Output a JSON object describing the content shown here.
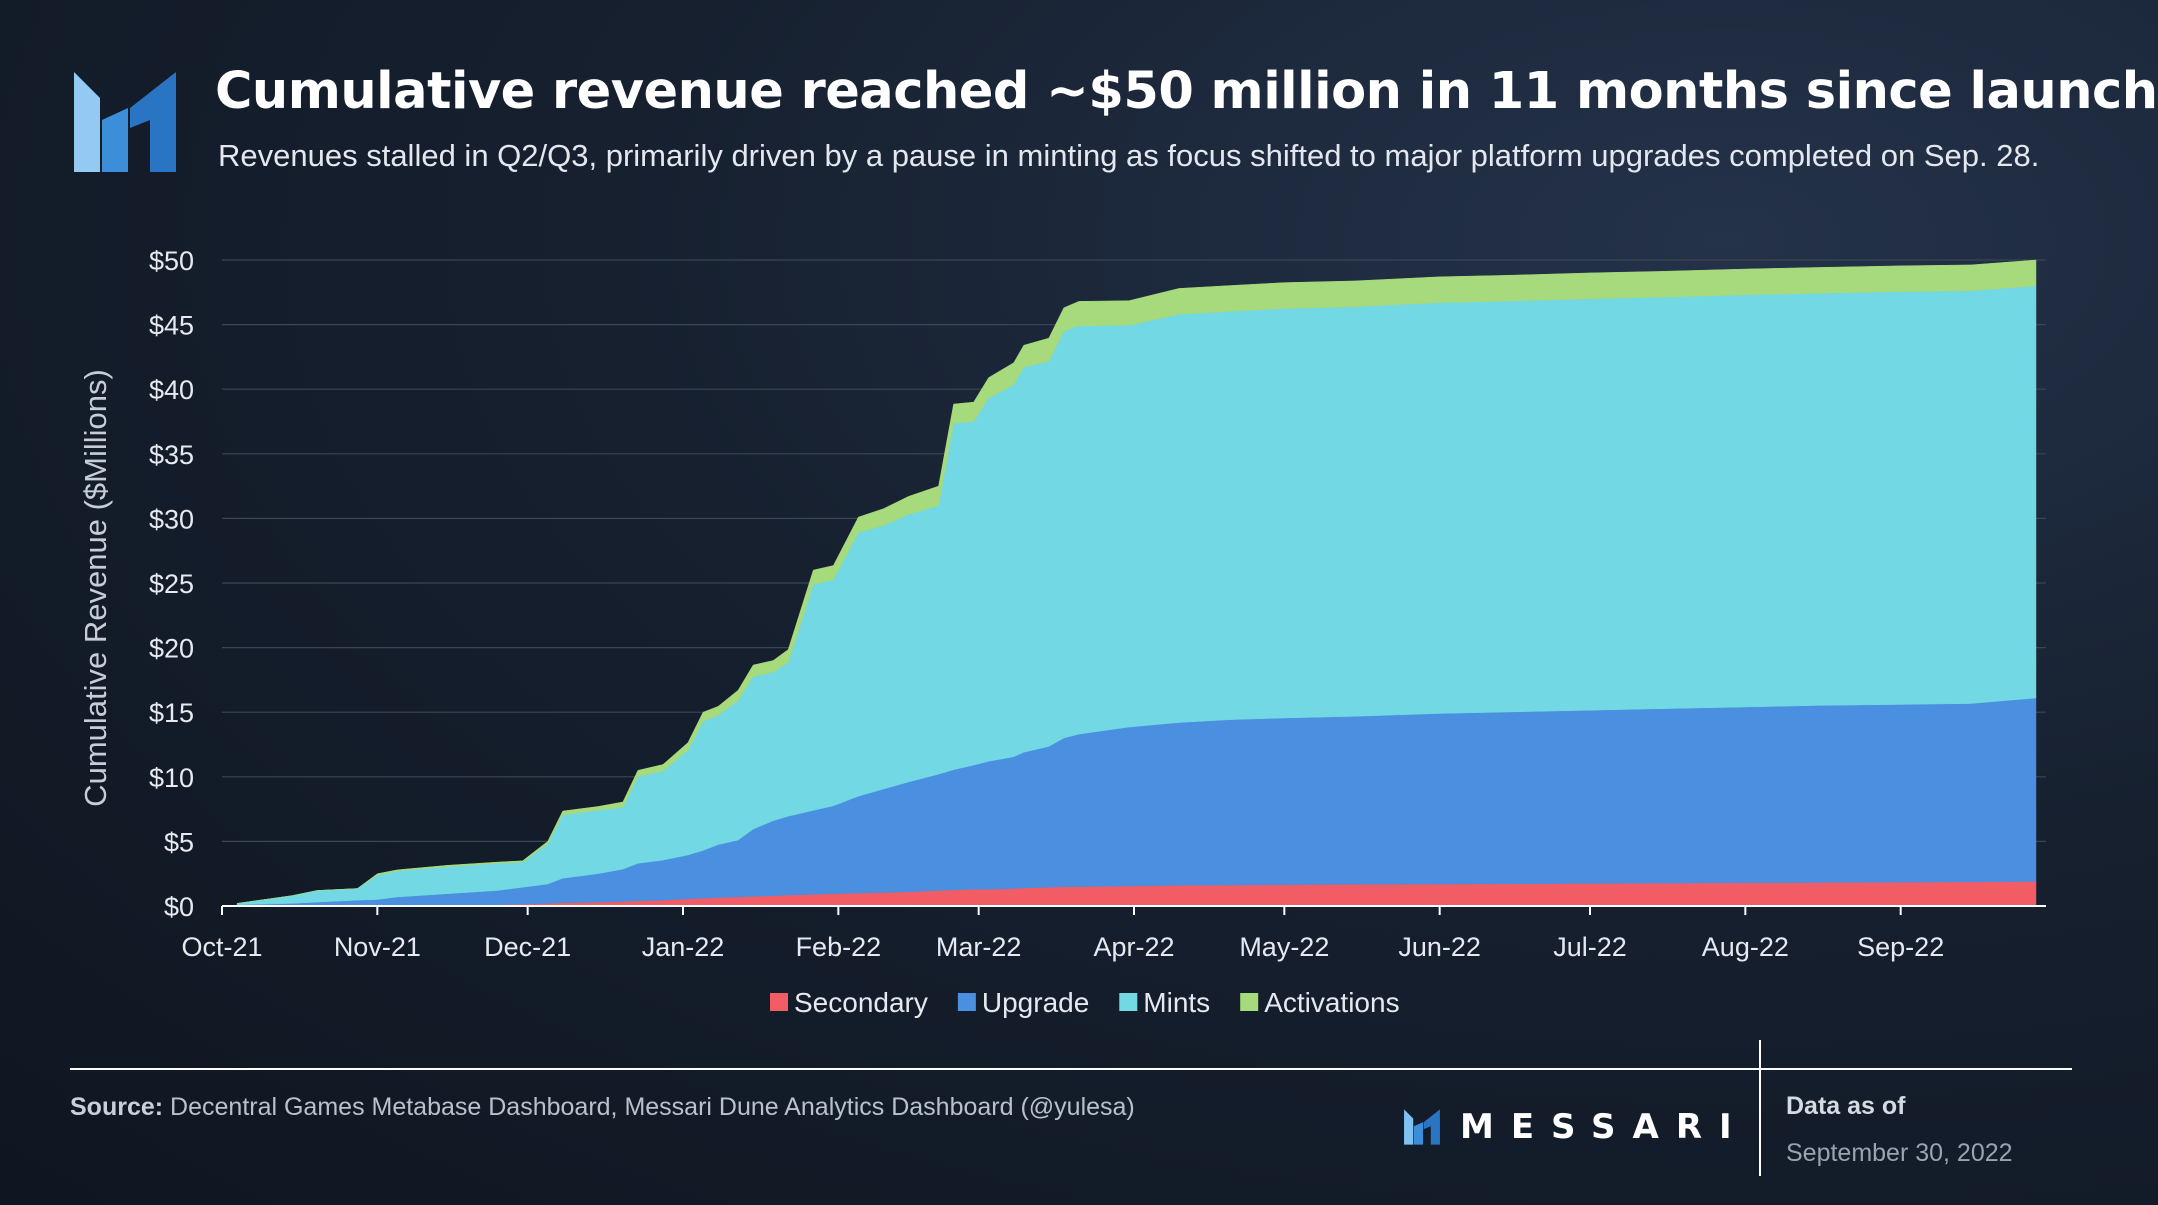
{
  "header": {
    "title": "Cumulative revenue reached ~$50 million in 11 months since launch",
    "subtitle": "Revenues stalled in Q2/Q3, primarily driven by a pause in minting as focus shifted to major platform upgrades completed on Sep. 28."
  },
  "colors": {
    "Secondary": "#f25c64",
    "Upgrade": "#4a8fe0",
    "Mints": "#72d8e4",
    "Activations": "#a6da7c",
    "grid": "#3a4656",
    "axis_text": "#e6eaf0"
  },
  "chart_data": {
    "type": "area",
    "stacked": true,
    "ylabel": "Cumulative Revenue ($Millions)",
    "xlabel": "",
    "ylim": [
      0,
      50
    ],
    "yticks": [
      0,
      5,
      10,
      15,
      20,
      25,
      30,
      35,
      40,
      45,
      50
    ],
    "ytick_labels": [
      "$0",
      "$5",
      "$10",
      "$15",
      "$20",
      "$25",
      "$30",
      "$35",
      "$40",
      "$45",
      "$50"
    ],
    "xlim": [
      "2021-10-01",
      "2022-09-30"
    ],
    "xtick_labels": [
      "Oct-21",
      "Nov-21",
      "Dec-21",
      "Jan-22",
      "Feb-22",
      "Mar-22",
      "Apr-22",
      "May-22",
      "Jun-22",
      "Jul-22",
      "Aug-22",
      "Sep-22"
    ],
    "xtick_dates": [
      "2021-10-01",
      "2021-11-01",
      "2021-12-01",
      "2022-01-01",
      "2022-02-01",
      "2022-03-01",
      "2022-04-01",
      "2022-05-01",
      "2022-06-01",
      "2022-07-01",
      "2022-08-01",
      "2022-09-01"
    ],
    "legend_position": "bottom-center",
    "grid": true,
    "x": [
      "2021-10-04",
      "2021-10-15",
      "2021-10-20",
      "2021-10-28",
      "2021-11-01",
      "2021-11-05",
      "2021-11-15",
      "2021-11-25",
      "2021-11-30",
      "2021-12-05",
      "2021-12-08",
      "2021-12-15",
      "2021-12-20",
      "2021-12-23",
      "2021-12-28",
      "2022-01-02",
      "2022-01-05",
      "2022-01-08",
      "2022-01-12",
      "2022-01-15",
      "2022-01-19",
      "2022-01-22",
      "2022-01-27",
      "2022-01-31",
      "2022-02-05",
      "2022-02-10",
      "2022-02-15",
      "2022-02-21",
      "2022-02-24",
      "2022-02-28",
      "2022-03-03",
      "2022-03-08",
      "2022-03-10",
      "2022-03-15",
      "2022-03-18",
      "2022-03-21",
      "2022-03-31",
      "2022-04-10",
      "2022-04-20",
      "2022-05-01",
      "2022-05-15",
      "2022-06-01",
      "2022-06-15",
      "2022-07-01",
      "2022-07-15",
      "2022-08-01",
      "2022-08-15",
      "2022-09-01",
      "2022-09-15",
      "2022-09-28"
    ],
    "series": [
      {
        "name": "Secondary",
        "values": [
          0,
          0,
          0,
          0,
          0,
          0,
          0.05,
          0.1,
          0.15,
          0.2,
          0.25,
          0.3,
          0.35,
          0.4,
          0.45,
          0.55,
          0.6,
          0.65,
          0.7,
          0.75,
          0.8,
          0.85,
          0.9,
          0.95,
          1.0,
          1.05,
          1.1,
          1.2,
          1.25,
          1.3,
          1.3,
          1.35,
          1.4,
          1.45,
          1.5,
          1.5,
          1.55,
          1.6,
          1.62,
          1.65,
          1.68,
          1.7,
          1.72,
          1.75,
          1.77,
          1.8,
          1.82,
          1.85,
          1.87,
          1.9
        ]
      },
      {
        "name": "Upgrade",
        "values": [
          0.1,
          0.2,
          0.3,
          0.45,
          0.5,
          0.7,
          0.9,
          1.1,
          1.3,
          1.5,
          1.9,
          2.2,
          2.5,
          2.9,
          3.1,
          3.4,
          3.7,
          4.1,
          4.4,
          5.2,
          5.8,
          6.1,
          6.5,
          6.8,
          7.5,
          8.0,
          8.5,
          9.0,
          9.3,
          9.6,
          9.9,
          10.2,
          10.5,
          10.9,
          11.5,
          11.8,
          12.3,
          12.6,
          12.8,
          12.9,
          13.0,
          13.2,
          13.3,
          13.4,
          13.5,
          13.6,
          13.7,
          13.75,
          13.8,
          14.2
        ]
      },
      {
        "name": "Mints",
        "values": [
          0.1,
          0.6,
          0.9,
          0.9,
          1.9,
          2.0,
          2.1,
          2.1,
          1.95,
          3.1,
          4.9,
          4.9,
          4.8,
          6.7,
          6.9,
          8.1,
          10.0,
          10.0,
          10.8,
          11.8,
          11.5,
          11.9,
          17.5,
          17.5,
          20.4,
          20.4,
          20.7,
          20.8,
          26.8,
          26.6,
          28.1,
          28.8,
          29.8,
          29.8,
          31.5,
          31.6,
          31.1,
          31.6,
          31.6,
          31.7,
          31.7,
          31.8,
          31.8,
          31.85,
          31.85,
          31.9,
          31.9,
          31.95,
          31.95,
          31.9
        ]
      },
      {
        "name": "Activations",
        "values": [
          0,
          0,
          0,
          0,
          0.1,
          0.1,
          0.1,
          0.1,
          0.1,
          0.2,
          0.3,
          0.3,
          0.4,
          0.5,
          0.5,
          0.6,
          0.7,
          0.7,
          0.8,
          0.9,
          0.9,
          1.0,
          1.1,
          1.1,
          1.2,
          1.3,
          1.4,
          1.5,
          1.5,
          1.5,
          1.6,
          1.7,
          1.7,
          1.8,
          1.8,
          1.9,
          1.9,
          2.0,
          2.0,
          2.0,
          2.0,
          2.0,
          2.0,
          2.0,
          2.0,
          2.0,
          2.0,
          2.0,
          2.0,
          2.0
        ]
      }
    ]
  },
  "footer": {
    "source_label": "Source:",
    "source_text": "Decentral Games Metabase Dashboard, Messari Dune Analytics Dashboard (@yulesa)",
    "brand": "MESSARI",
    "as_of_label": "Data as of",
    "as_of_date": "September 30, 2022"
  }
}
